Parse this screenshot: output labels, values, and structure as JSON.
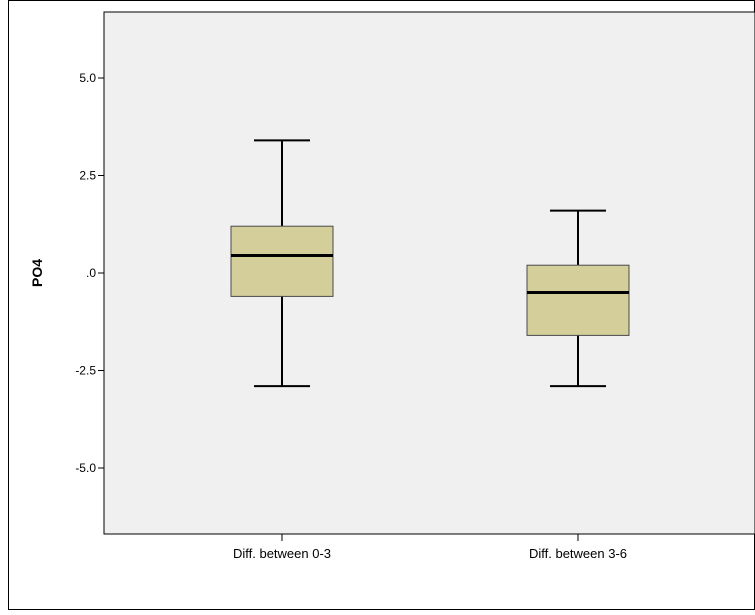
{
  "chart_data": {
    "type": "box",
    "title": "",
    "xlabel": "",
    "ylabel": "PO4",
    "ylim": [
      -6.6,
      6.6
    ],
    "grid": false,
    "legend": "none",
    "y_ticks": [
      5.0,
      2.5,
      0.0,
      -2.5,
      -5.0
    ],
    "y_tick_labels": [
      "5.0",
      "2.5",
      ".0",
      "-2.5",
      "-5.0"
    ],
    "categories": [
      "Diff. between 0-3",
      "Diff. between 3-6"
    ],
    "boxes": [
      {
        "category": "Diff. between 0-3",
        "whisker_low": -2.9,
        "q1": -0.6,
        "median": 0.45,
        "q3": 1.2,
        "whisker_high": 3.4
      },
      {
        "category": "Diff. between 3-6",
        "whisker_low": -2.9,
        "q1": -1.6,
        "median": -0.5,
        "q3": 0.2,
        "whisker_high": 1.6
      }
    ],
    "colors": {
      "plot_background": "#f0f0f0",
      "box_fill": "#d3ce9a",
      "box_stroke": "#4a4a4a",
      "line": "#000000"
    }
  }
}
